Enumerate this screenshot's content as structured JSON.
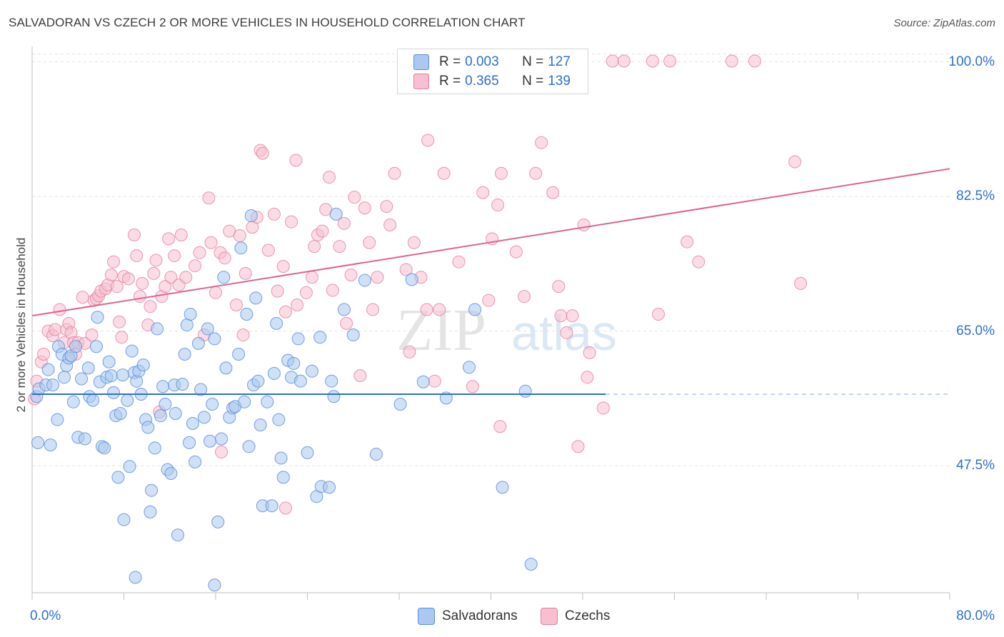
{
  "title": "SALVADORAN VS CZECH 2 OR MORE VEHICLES IN HOUSEHOLD CORRELATION CHART",
  "source": "Source: ZipAtlas.com",
  "watermark": {
    "zip": "ZIP",
    "atlas": "atlas"
  },
  "legend": {
    "r_label": "R =",
    "n_label": "N =",
    "salvadorans": {
      "r": "0.003",
      "n": "127"
    },
    "czechs": {
      "r": "0.365",
      "n": "139"
    }
  },
  "bottom_legend": {
    "salvadorans": "Salvadorans",
    "czechs": "Czechs"
  },
  "colors": {
    "blue_fill": "#aac8f0",
    "blue_stroke": "#5a8fd8",
    "blue_line": "#2f6fd0",
    "pink_fill": "#f7bfd0",
    "pink_stroke": "#e07fa0",
    "pink_line": "#e0628f",
    "tick_text": "#2f6fce",
    "grid": "#e2e2e2"
  },
  "chart_data": {
    "type": "scatter",
    "title": "SALVADORAN VS CZECH 2 OR MORE VEHICLES IN HOUSEHOLD CORRELATION CHART",
    "xlabel": "",
    "ylabel": "2 or more Vehicles in Household",
    "xlim": [
      0,
      80
    ],
    "ylim": [
      31,
      102
    ],
    "x_tick_labels": [
      "0.0%",
      "80.0%"
    ],
    "y_ticks": [
      47.5,
      65.0,
      82.5,
      100.0
    ],
    "y_tick_labels": [
      "47.5%",
      "65.0%",
      "82.5%",
      "100.0%"
    ],
    "grid": true,
    "legend_position": "top-center",
    "series": [
      {
        "name": "Salvadorans",
        "r": 0.003,
        "n": 127,
        "trend": {
          "x0": 0,
          "y0": 56.8,
          "x1": 50,
          "y1": 56.8,
          "dashed_to": 80
        },
        "points": [
          [
            0.4,
            56.5
          ],
          [
            0.6,
            57.5
          ],
          [
            0.5,
            50.5
          ],
          [
            1.2,
            58
          ],
          [
            1.4,
            60
          ],
          [
            1.6,
            50.2
          ],
          [
            1.8,
            58
          ],
          [
            2.2,
            53.5
          ],
          [
            2.3,
            63
          ],
          [
            2.6,
            62
          ],
          [
            2.8,
            59
          ],
          [
            3.0,
            60.5
          ],
          [
            3.2,
            61.5
          ],
          [
            3.4,
            61.8
          ],
          [
            3.6,
            55.8
          ],
          [
            3.8,
            63
          ],
          [
            4.0,
            51.2
          ],
          [
            4.3,
            58.8
          ],
          [
            4.6,
            51
          ],
          [
            4.9,
            60.2
          ],
          [
            5.0,
            56.5
          ],
          [
            5.3,
            56
          ],
          [
            5.6,
            63
          ],
          [
            5.7,
            66.8
          ],
          [
            5.9,
            58.4
          ],
          [
            6.1,
            50
          ],
          [
            6.3,
            49.8
          ],
          [
            6.5,
            59
          ],
          [
            6.7,
            61
          ],
          [
            6.9,
            59.2
          ],
          [
            7.1,
            57
          ],
          [
            7.3,
            54
          ],
          [
            7.5,
            46
          ],
          [
            7.7,
            54.3
          ],
          [
            7.9,
            59.3
          ],
          [
            8.0,
            40.5
          ],
          [
            8.3,
            56
          ],
          [
            8.5,
            47.4
          ],
          [
            8.7,
            62.4
          ],
          [
            8.9,
            59.6
          ],
          [
            9.1,
            58.5
          ],
          [
            9.3,
            59.8
          ],
          [
            9.5,
            56.8
          ],
          [
            9.7,
            60.6
          ],
          [
            9.9,
            53.5
          ],
          [
            10.1,
            52.5
          ],
          [
            10.3,
            41.5
          ],
          [
            10.4,
            44.3
          ],
          [
            10.7,
            49.8
          ],
          [
            10.9,
            65.3
          ],
          [
            11.2,
            54
          ],
          [
            11.4,
            57.8
          ],
          [
            11.6,
            55.5
          ],
          [
            11.8,
            47
          ],
          [
            12.1,
            46.5
          ],
          [
            12.4,
            58
          ],
          [
            12.5,
            54.3
          ],
          [
            12.7,
            38.5
          ],
          [
            13.1,
            58.1
          ],
          [
            13.3,
            62
          ],
          [
            13.5,
            65.8
          ],
          [
            13.7,
            50.5
          ],
          [
            13.8,
            67.2
          ],
          [
            14.0,
            53
          ],
          [
            14.2,
            48
          ],
          [
            14.5,
            63.4
          ],
          [
            14.7,
            57.4
          ],
          [
            15.0,
            53.8
          ],
          [
            15.3,
            65.3
          ],
          [
            15.5,
            50.7
          ],
          [
            15.7,
            55.5
          ],
          [
            15.9,
            64
          ],
          [
            16.2,
            40.2
          ],
          [
            16.5,
            51
          ],
          [
            16.7,
            72
          ],
          [
            16.9,
            60.2
          ],
          [
            17.2,
            53.8
          ],
          [
            17.5,
            55
          ],
          [
            17.7,
            55.2
          ],
          [
            18.0,
            62
          ],
          [
            18.2,
            75.8
          ],
          [
            18.5,
            55.8
          ],
          [
            18.7,
            67.2
          ],
          [
            18.9,
            50
          ],
          [
            19.1,
            80
          ],
          [
            19.3,
            58
          ],
          [
            19.5,
            69.3
          ],
          [
            19.7,
            58.5
          ],
          [
            19.9,
            52.8
          ],
          [
            20.1,
            42.3
          ],
          [
            20.5,
            55.8
          ],
          [
            20.9,
            42.3
          ],
          [
            21.1,
            59.5
          ],
          [
            21.3,
            66
          ],
          [
            21.5,
            53.5
          ],
          [
            21.7,
            48.5
          ],
          [
            21.9,
            46
          ],
          [
            22.3,
            61.2
          ],
          [
            22.6,
            59
          ],
          [
            22.8,
            60.8
          ],
          [
            23.2,
            64
          ],
          [
            23.4,
            58.5
          ],
          [
            24.0,
            49.2
          ],
          [
            24.4,
            59.8
          ],
          [
            24.8,
            43.5
          ],
          [
            25.1,
            64.2
          ],
          [
            25.2,
            44.8
          ],
          [
            25.9,
            44.7
          ],
          [
            26.1,
            58.5
          ],
          [
            26.3,
            56.5
          ],
          [
            26.5,
            80.2
          ],
          [
            27.2,
            67.8
          ],
          [
            28.0,
            64.5
          ],
          [
            29.0,
            71.6
          ],
          [
            30.0,
            49
          ],
          [
            32.1,
            55.5
          ],
          [
            33.1,
            71.7
          ],
          [
            34.1,
            58.4
          ],
          [
            36.1,
            56.3
          ],
          [
            38.1,
            60.3
          ],
          [
            38.6,
            67.8
          ],
          [
            41.0,
            44.7
          ],
          [
            43.0,
            57.2
          ],
          [
            43.5,
            34.7
          ],
          [
            9.0,
            33
          ],
          [
            15.9,
            32
          ]
        ]
      },
      {
        "name": "Czechs",
        "r": 0.365,
        "n": 139,
        "trend": {
          "x0": 0,
          "y0": 67.0,
          "x1": 80,
          "y1": 86.1
        },
        "points": [
          [
            0.2,
            56.2
          ],
          [
            0.4,
            58.5
          ],
          [
            0.8,
            61
          ],
          [
            1.0,
            62
          ],
          [
            1.4,
            65
          ],
          [
            1.8,
            64.4
          ],
          [
            2.0,
            65.2
          ],
          [
            2.4,
            67.8
          ],
          [
            2.8,
            63.5
          ],
          [
            3.0,
            65.2
          ],
          [
            3.2,
            66
          ],
          [
            3.4,
            64.8
          ],
          [
            3.6,
            63.5
          ],
          [
            3.8,
            62
          ],
          [
            4.0,
            63.5
          ],
          [
            4.4,
            69.4
          ],
          [
            4.6,
            63.4
          ],
          [
            5.2,
            64.5
          ],
          [
            5.4,
            69
          ],
          [
            5.6,
            69.2
          ],
          [
            5.8,
            69.6
          ],
          [
            6.0,
            70.2
          ],
          [
            6.4,
            70.5
          ],
          [
            6.6,
            71
          ],
          [
            6.9,
            72.3
          ],
          [
            7.1,
            74
          ],
          [
            7.4,
            70.8
          ],
          [
            7.6,
            66.2
          ],
          [
            7.8,
            64.2
          ],
          [
            8.0,
            72.1
          ],
          [
            8.4,
            71.8
          ],
          [
            8.9,
            77.5
          ],
          [
            9.1,
            74.8
          ],
          [
            9.4,
            69.5
          ],
          [
            9.6,
            71.2
          ],
          [
            10.1,
            65.8
          ],
          [
            10.3,
            68.2
          ],
          [
            10.6,
            72.5
          ],
          [
            10.8,
            74.2
          ],
          [
            11.1,
            54.5
          ],
          [
            11.3,
            69.5
          ],
          [
            11.6,
            70.8
          ],
          [
            11.9,
            77
          ],
          [
            12.1,
            72
          ],
          [
            12.4,
            74.8
          ],
          [
            12.8,
            71
          ],
          [
            13.0,
            77.5
          ],
          [
            13.4,
            72
          ],
          [
            14.2,
            73.5
          ],
          [
            14.6,
            75.2
          ],
          [
            15.0,
            64.5
          ],
          [
            15.4,
            82.3
          ],
          [
            15.6,
            76.5
          ],
          [
            16.0,
            70
          ],
          [
            16.4,
            75.2
          ],
          [
            16.8,
            74.5
          ],
          [
            17.2,
            78
          ],
          [
            17.8,
            68.4
          ],
          [
            18.1,
            77.4
          ],
          [
            18.4,
            64.5
          ],
          [
            18.6,
            72.5
          ],
          [
            19.2,
            78.5
          ],
          [
            19.6,
            79.8
          ],
          [
            19.9,
            88.5
          ],
          [
            20.1,
            88.1
          ],
          [
            20.6,
            75.5
          ],
          [
            21.1,
            80.2
          ],
          [
            21.4,
            70.2
          ],
          [
            21.9,
            73.4
          ],
          [
            22.1,
            67.5
          ],
          [
            22.6,
            79.2
          ],
          [
            23.0,
            87.2
          ],
          [
            23.1,
            68.4
          ],
          [
            23.9,
            70
          ],
          [
            24.4,
            72
          ],
          [
            24.6,
            76
          ],
          [
            24.9,
            77.5
          ],
          [
            25.3,
            78
          ],
          [
            25.6,
            80.8
          ],
          [
            25.9,
            85
          ],
          [
            26.2,
            70.3
          ],
          [
            26.8,
            76
          ],
          [
            27.2,
            79
          ],
          [
            27.4,
            66
          ],
          [
            27.8,
            72.3
          ],
          [
            28.1,
            82.4
          ],
          [
            28.6,
            59.2
          ],
          [
            29.0,
            81
          ],
          [
            29.4,
            76.5
          ],
          [
            29.7,
            67.8
          ],
          [
            30.1,
            72
          ],
          [
            30.9,
            81.2
          ],
          [
            31.2,
            78.8
          ],
          [
            31.6,
            85.5
          ],
          [
            32.6,
            73
          ],
          [
            32.9,
            62.3
          ],
          [
            33.3,
            76.5
          ],
          [
            33.9,
            72
          ],
          [
            34.4,
            67.8
          ],
          [
            34.5,
            89.8
          ],
          [
            35.5,
            67.8
          ],
          [
            35.9,
            85.5
          ],
          [
            37.2,
            74
          ],
          [
            38.4,
            57.8
          ],
          [
            39.3,
            83
          ],
          [
            39.8,
            69
          ],
          [
            40.1,
            77
          ],
          [
            40.6,
            81.4
          ],
          [
            40.9,
            85.5
          ],
          [
            42.2,
            75.3
          ],
          [
            42.9,
            69.5
          ],
          [
            43.9,
            85.5
          ],
          [
            44.4,
            89.5
          ],
          [
            45.4,
            83
          ],
          [
            45.9,
            70.8
          ],
          [
            46.1,
            67
          ],
          [
            46.6,
            64.8
          ],
          [
            47.1,
            67
          ],
          [
            47.6,
            50
          ],
          [
            48.1,
            78.8
          ],
          [
            48.4,
            59
          ],
          [
            48.6,
            62.2
          ],
          [
            49.8,
            55
          ],
          [
            50.6,
            100.1
          ],
          [
            51.6,
            100.1
          ],
          [
            54.1,
            100.1
          ],
          [
            54.6,
            67.2
          ],
          [
            55.6,
            100.1
          ],
          [
            57.1,
            76.6
          ],
          [
            58.1,
            74
          ],
          [
            61.0,
            100.1
          ],
          [
            63.0,
            100.1
          ],
          [
            66.5,
            87
          ],
          [
            67.0,
            71.2
          ],
          [
            35.1,
            58.5
          ],
          [
            16.5,
            49.3
          ],
          [
            40.8,
            52.6
          ],
          [
            22.1,
            42
          ]
        ]
      }
    ]
  }
}
